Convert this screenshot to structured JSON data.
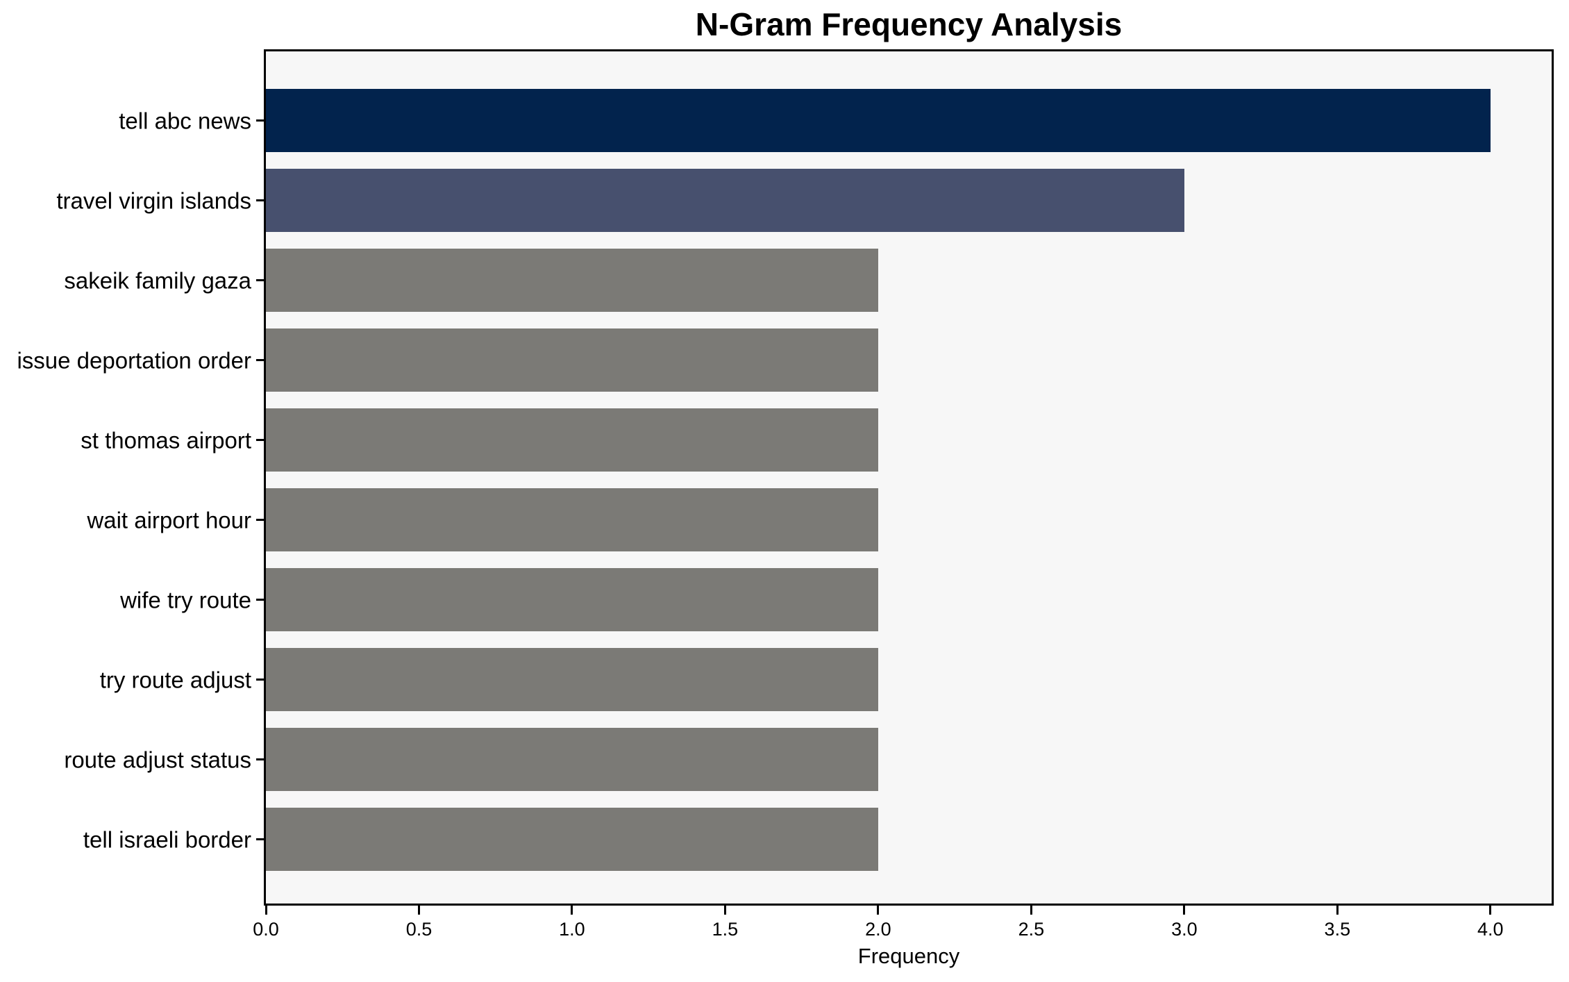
{
  "chart_data": {
    "type": "bar",
    "orientation": "horizontal",
    "title": "N-Gram Frequency Analysis",
    "xlabel": "Frequency",
    "ylabel": "",
    "categories": [
      "tell abc news",
      "travel virgin islands",
      "sakeik family gaza",
      "issue deportation order",
      "st thomas airport",
      "wait airport hour",
      "wife try route",
      "try route adjust",
      "route adjust status",
      "tell israeli border"
    ],
    "values": [
      4,
      3,
      2,
      2,
      2,
      2,
      2,
      2,
      2,
      2
    ],
    "xlim": [
      0,
      4.2
    ],
    "xticks": [
      "0.0",
      "0.5",
      "1.0",
      "1.5",
      "2.0",
      "2.5",
      "3.0",
      "3.5",
      "4.0"
    ],
    "bar_colors": [
      "#02234d",
      "#47506e",
      "#7b7a76",
      "#7b7a76",
      "#7b7a76",
      "#7b7a76",
      "#7b7a76",
      "#7b7a76",
      "#7b7a76",
      "#7b7a76"
    ],
    "colors": {
      "figure_bg": "#ffffff",
      "plot_bg": "#f7f7f7",
      "spine": "#000000",
      "text": "#000000"
    },
    "grid": false,
    "legend": null
  }
}
